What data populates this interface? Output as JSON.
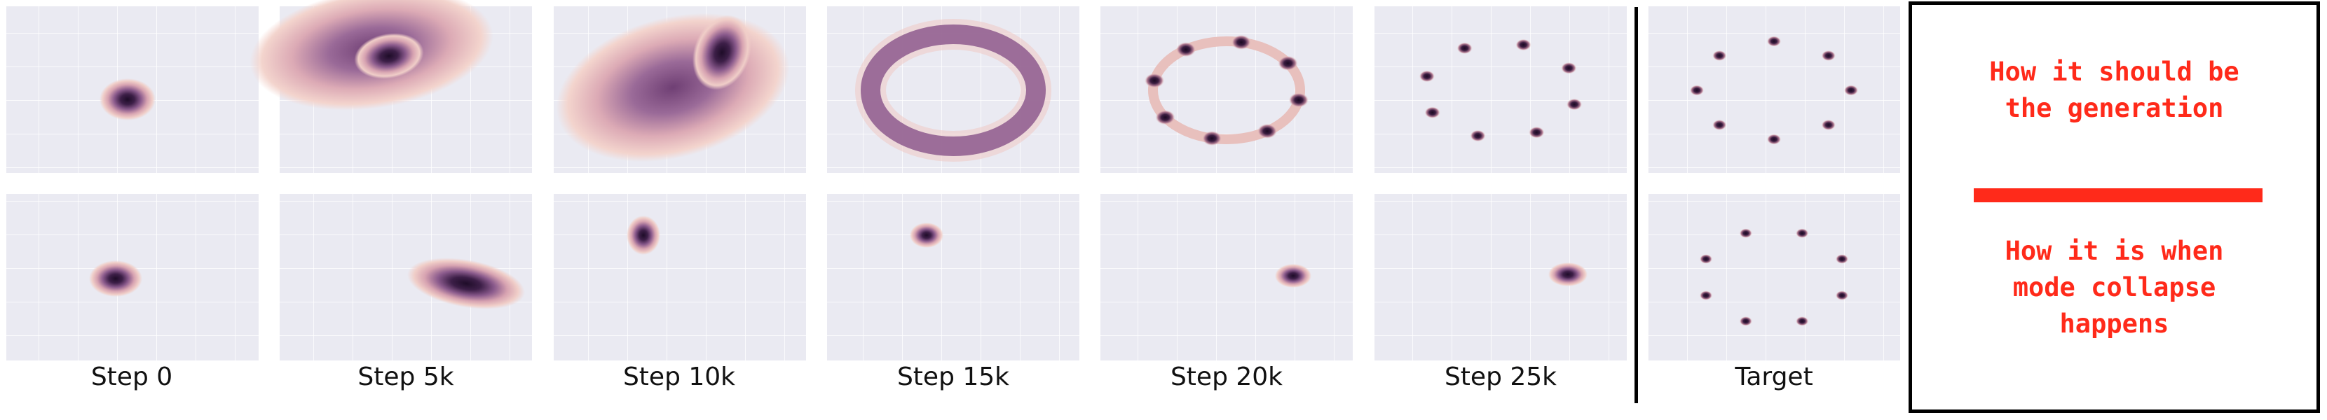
{
  "columns": [
    {
      "label": "Step 0"
    },
    {
      "label": "Step 5k"
    },
    {
      "label": "Step 10k"
    },
    {
      "label": "Step 15k"
    },
    {
      "label": "Step 20k"
    },
    {
      "label": "Step 25k"
    },
    {
      "label": "Target"
    }
  ],
  "legend": {
    "top_text": "How it should be\nthe generation",
    "bottom_text": "How it is when\nmode collapse\nhappens"
  },
  "colors": {
    "panel_bg": "#eaeaf2",
    "density_dark": "#2a1430",
    "density_mid": "#7a4a7e",
    "density_light": "#eecbc6",
    "legend_red": "#ff2a1a"
  }
}
